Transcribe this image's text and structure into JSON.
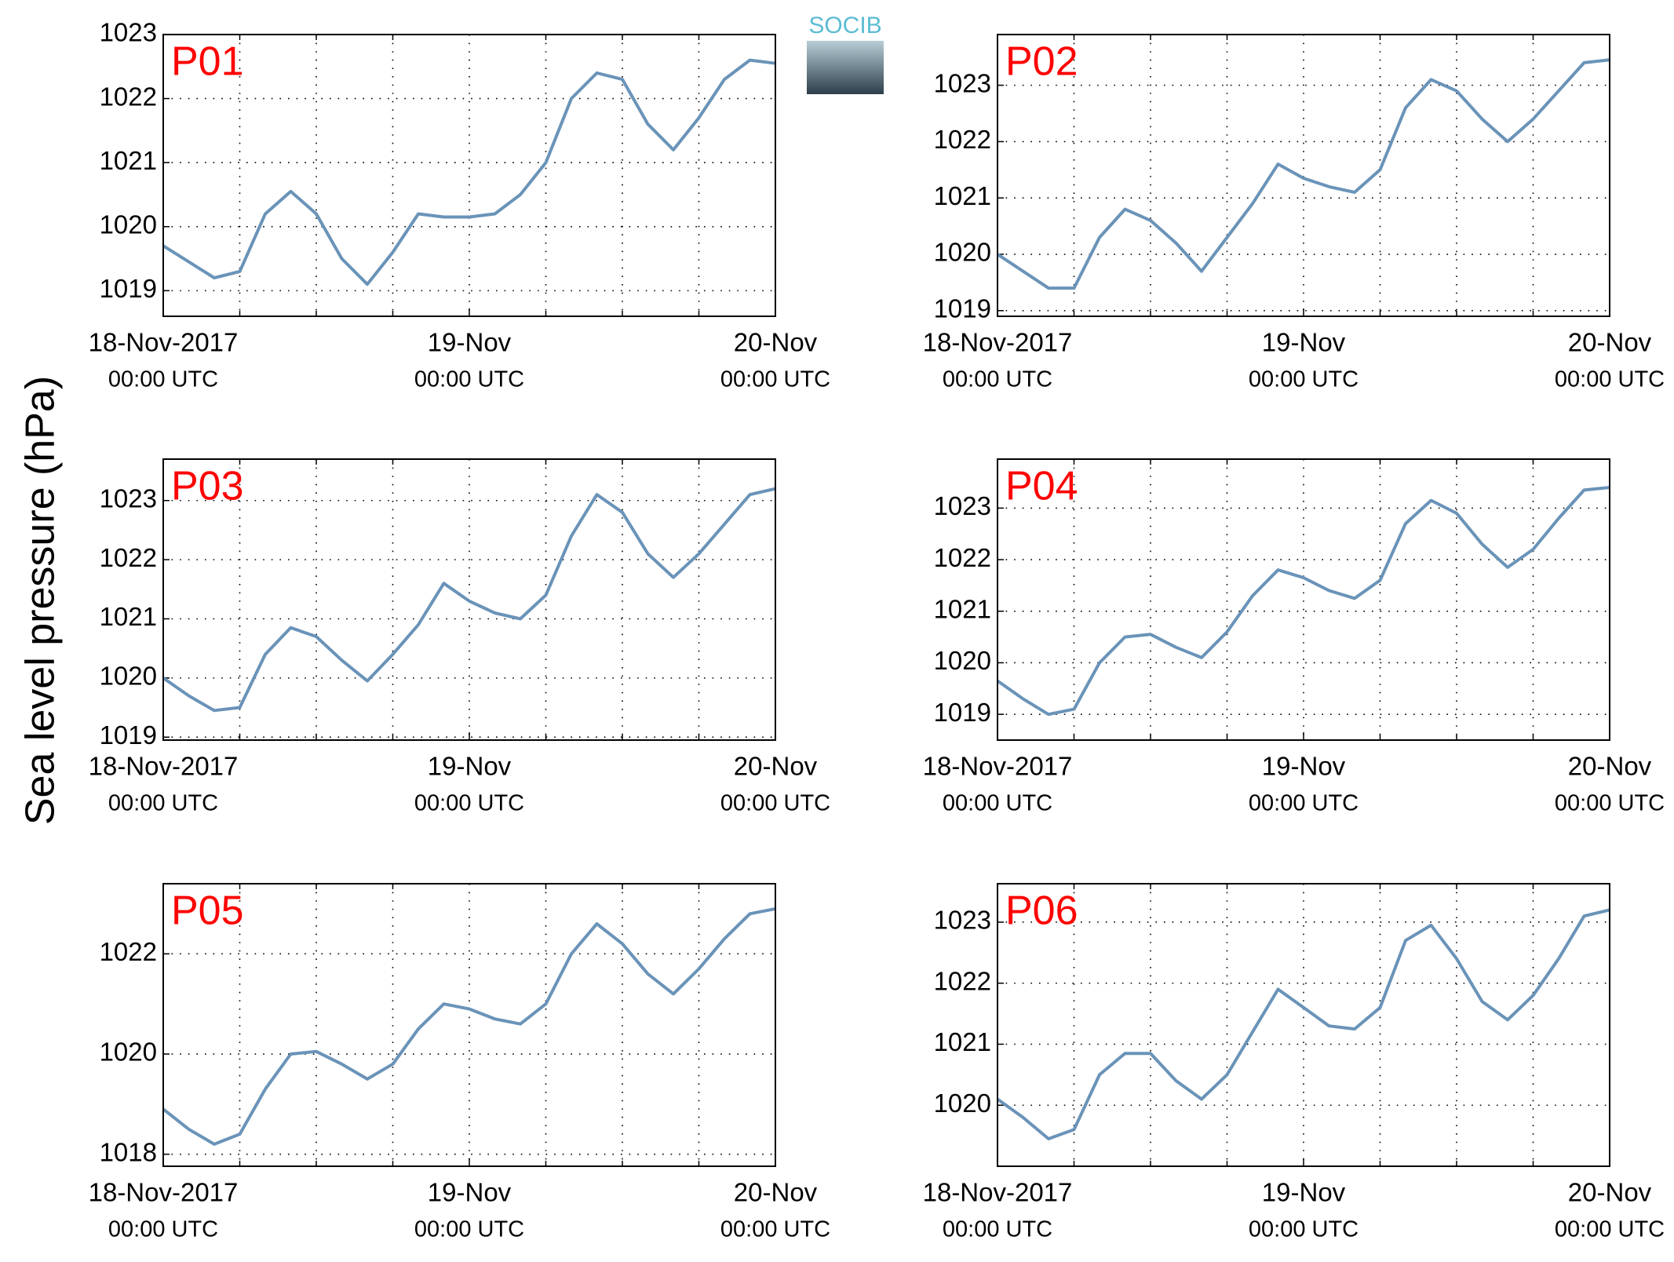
{
  "ylabel": "Sea level pressure (hPa)",
  "logo": "SOCIB",
  "chart_data": [
    {
      "type": "line",
      "title": "P01",
      "color": "#6a93b8",
      "x": [
        0,
        2,
        4,
        6,
        8,
        10,
        12,
        14,
        16,
        18,
        20,
        22,
        24,
        26,
        28,
        30,
        32,
        34,
        36,
        38,
        40,
        42,
        44,
        46,
        48
      ],
      "values": [
        1019.7,
        1019.45,
        1019.2,
        1019.3,
        1020.2,
        1020.55,
        1020.2,
        1019.5,
        1019.1,
        1019.6,
        1020.2,
        1020.15,
        1020.15,
        1020.2,
        1020.5,
        1021.0,
        1022.0,
        1022.4,
        1022.3,
        1021.6,
        1021.2,
        1021.7,
        1022.3,
        1022.6,
        1022.55
      ],
      "xlim": [
        0,
        48
      ],
      "ylim": [
        1018.6,
        1023
      ],
      "xticks": [
        {
          "value": 0,
          "label": "18-Nov-2017"
        },
        {
          "value": 24,
          "label": "19-Nov"
        },
        {
          "value": 48,
          "label": "20-Nov"
        }
      ],
      "xtick_sublabels": [
        "00:00 UTC",
        "00:00 UTC",
        "00:00 UTC"
      ],
      "minor_xticks": [
        6,
        12,
        18,
        30,
        36,
        42
      ],
      "yticks": [
        1019,
        1020,
        1021,
        1022,
        1023
      ],
      "grid": true
    },
    {
      "type": "line",
      "title": "P02",
      "color": "#6a93b8",
      "x": [
        0,
        2,
        4,
        6,
        8,
        10,
        12,
        14,
        16,
        18,
        20,
        22,
        24,
        26,
        28,
        30,
        32,
        34,
        36,
        38,
        40,
        42,
        44,
        46,
        48
      ],
      "values": [
        1020.0,
        1019.7,
        1019.4,
        1019.4,
        1020.3,
        1020.8,
        1020.6,
        1020.2,
        1019.7,
        1020.3,
        1020.9,
        1021.6,
        1021.35,
        1021.2,
        1021.1,
        1021.5,
        1022.6,
        1023.1,
        1022.9,
        1022.4,
        1022.0,
        1022.4,
        1022.9,
        1023.4,
        1023.45
      ],
      "xlim": [
        0,
        48
      ],
      "ylim": [
        1018.9,
        1023.9
      ],
      "xticks": [
        {
          "value": 0,
          "label": "18-Nov-2017"
        },
        {
          "value": 24,
          "label": "19-Nov"
        },
        {
          "value": 48,
          "label": "20-Nov"
        }
      ],
      "xtick_sublabels": [
        "00:00 UTC",
        "00:00 UTC",
        "00:00 UTC"
      ],
      "minor_xticks": [
        6,
        12,
        18,
        30,
        36,
        42
      ],
      "yticks": [
        1019,
        1020,
        1021,
        1022,
        1023
      ],
      "grid": true
    },
    {
      "type": "line",
      "title": "P03",
      "color": "#6a93b8",
      "x": [
        0,
        2,
        4,
        6,
        8,
        10,
        12,
        14,
        16,
        18,
        20,
        22,
        24,
        26,
        28,
        30,
        32,
        34,
        36,
        38,
        40,
        42,
        44,
        46,
        48
      ],
      "values": [
        1020.0,
        1019.7,
        1019.45,
        1019.5,
        1020.4,
        1020.85,
        1020.7,
        1020.3,
        1019.95,
        1020.4,
        1020.9,
        1021.6,
        1021.3,
        1021.1,
        1021.0,
        1021.4,
        1022.4,
        1023.1,
        1022.8,
        1022.1,
        1021.7,
        1022.1,
        1022.6,
        1023.1,
        1023.2
      ],
      "xlim": [
        0,
        48
      ],
      "ylim": [
        1018.95,
        1023.7
      ],
      "xticks": [
        {
          "value": 0,
          "label": "18-Nov-2017"
        },
        {
          "value": 24,
          "label": "19-Nov"
        },
        {
          "value": 48,
          "label": "20-Nov"
        }
      ],
      "xtick_sublabels": [
        "00:00 UTC",
        "00:00 UTC",
        "00:00 UTC"
      ],
      "minor_xticks": [
        6,
        12,
        18,
        30,
        36,
        42
      ],
      "yticks": [
        1019,
        1020,
        1021,
        1022,
        1023
      ],
      "grid": true
    },
    {
      "type": "line",
      "title": "P04",
      "color": "#6a93b8",
      "x": [
        0,
        2,
        4,
        6,
        8,
        10,
        12,
        14,
        16,
        18,
        20,
        22,
        24,
        26,
        28,
        30,
        32,
        34,
        36,
        38,
        40,
        42,
        44,
        46,
        48
      ],
      "values": [
        1019.65,
        1019.3,
        1019.0,
        1019.1,
        1020.0,
        1020.5,
        1020.55,
        1020.3,
        1020.1,
        1020.6,
        1021.3,
        1021.8,
        1021.65,
        1021.4,
        1021.25,
        1021.6,
        1022.7,
        1023.15,
        1022.9,
        1022.3,
        1021.85,
        1022.2,
        1022.8,
        1023.35,
        1023.4
      ],
      "xlim": [
        0,
        48
      ],
      "ylim": [
        1018.5,
        1023.95
      ],
      "xticks": [
        {
          "value": 0,
          "label": "18-Nov-2017"
        },
        {
          "value": 24,
          "label": "19-Nov"
        },
        {
          "value": 48,
          "label": "20-Nov"
        }
      ],
      "xtick_sublabels": [
        "00:00 UTC",
        "00:00 UTC",
        "00:00 UTC"
      ],
      "minor_xticks": [
        6,
        12,
        18,
        30,
        36,
        42
      ],
      "yticks": [
        1019,
        1020,
        1021,
        1022,
        1023
      ],
      "grid": true
    },
    {
      "type": "line",
      "title": "P05",
      "color": "#6a93b8",
      "x": [
        0,
        2,
        4,
        6,
        8,
        10,
        12,
        14,
        16,
        18,
        20,
        22,
        24,
        26,
        28,
        30,
        32,
        34,
        36,
        38,
        40,
        42,
        44,
        46,
        48
      ],
      "values": [
        1018.9,
        1018.5,
        1018.2,
        1018.4,
        1019.3,
        1020.0,
        1020.05,
        1019.8,
        1019.5,
        1019.8,
        1020.5,
        1021.0,
        1020.9,
        1020.7,
        1020.6,
        1021.0,
        1022.0,
        1022.6,
        1022.2,
        1021.6,
        1021.2,
        1021.7,
        1022.3,
        1022.8,
        1022.9
      ],
      "xlim": [
        0,
        48
      ],
      "ylim": [
        1017.76,
        1023.4
      ],
      "xticks": [
        {
          "value": 0,
          "label": "18-Nov-2017"
        },
        {
          "value": 24,
          "label": "19-Nov"
        },
        {
          "value": 48,
          "label": "20-Nov"
        }
      ],
      "xtick_sublabels": [
        "00:00 UTC",
        "00:00 UTC",
        "00:00 UTC"
      ],
      "minor_xticks": [
        6,
        12,
        18,
        30,
        36,
        42
      ],
      "yticks": [
        1018,
        1020,
        1022
      ],
      "grid": true
    },
    {
      "type": "line",
      "title": "P06",
      "color": "#6a93b8",
      "x": [
        0,
        2,
        4,
        6,
        8,
        10,
        12,
        14,
        16,
        18,
        20,
        22,
        24,
        26,
        28,
        30,
        32,
        34,
        36,
        38,
        40,
        42,
        44,
        46,
        48
      ],
      "values": [
        1020.1,
        1019.8,
        1019.45,
        1019.6,
        1020.5,
        1020.85,
        1020.85,
        1020.4,
        1020.1,
        1020.5,
        1021.2,
        1021.9,
        1021.6,
        1021.3,
        1021.25,
        1021.6,
        1022.7,
        1022.95,
        1022.4,
        1021.7,
        1021.4,
        1021.8,
        1022.4,
        1023.1,
        1023.2
      ],
      "xlim": [
        0,
        48
      ],
      "ylim": [
        1019.0,
        1023.63
      ],
      "xticks": [
        {
          "value": 0,
          "label": "18-Nov-2017"
        },
        {
          "value": 24,
          "label": "19-Nov"
        },
        {
          "value": 48,
          "label": "20-Nov"
        }
      ],
      "xtick_sublabels": [
        "00:00 UTC",
        "00:00 UTC",
        "00:00 UTC"
      ],
      "minor_xticks": [
        6,
        12,
        18,
        30,
        36,
        42
      ],
      "yticks": [
        1020,
        1021,
        1022,
        1023
      ],
      "grid": true
    }
  ]
}
